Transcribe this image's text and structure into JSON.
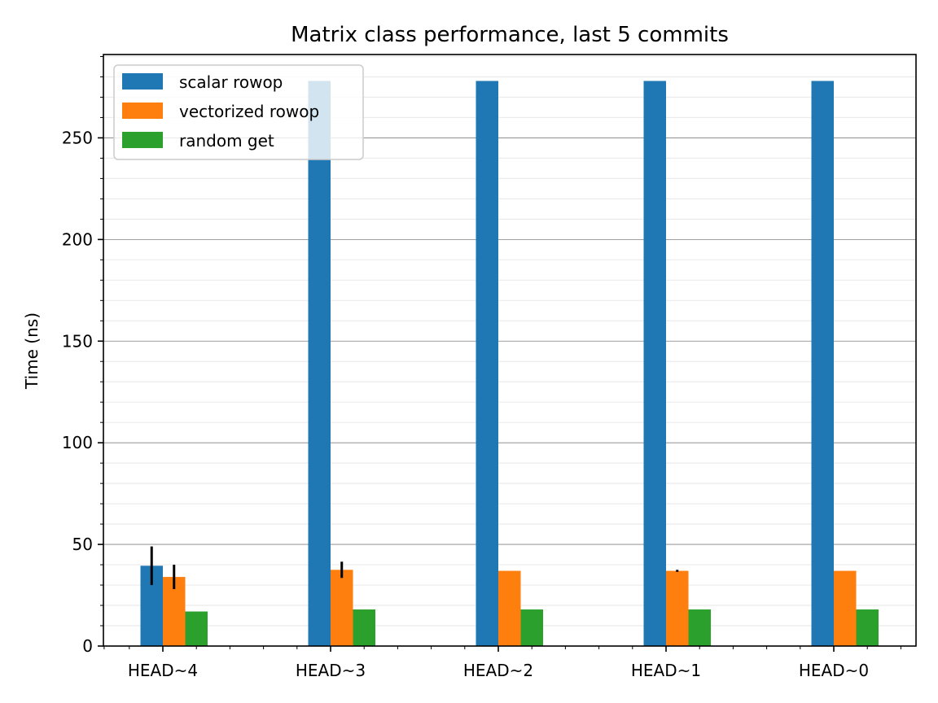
{
  "chart_data": {
    "type": "bar",
    "title": "Matrix class performance, last 5 commits",
    "xlabel": "",
    "ylabel": "Time (ns)",
    "categories": [
      "HEAD~4",
      "HEAD~3",
      "HEAD~2",
      "HEAD~1",
      "HEAD~0"
    ],
    "ylim": [
      0,
      291
    ],
    "yticks": [
      0,
      50,
      100,
      150,
      200,
      250
    ],
    "y_minor_step": 10,
    "grid": true,
    "legend_position": "top-left",
    "series": [
      {
        "name": "scalar rowop",
        "color": "#1f77b4",
        "values": [
          39.5,
          278,
          278,
          278,
          278
        ],
        "errors": [
          9.5,
          0,
          0,
          0,
          0
        ]
      },
      {
        "name": "vectorized rowop",
        "color": "#ff7f0e",
        "values": [
          34,
          37.5,
          37,
          37,
          37
        ],
        "errors": [
          6,
          4,
          0,
          0.5,
          0
        ]
      },
      {
        "name": "random get",
        "color": "#2ca02c",
        "values": [
          17,
          18,
          18,
          18,
          18
        ],
        "errors": [
          0,
          0,
          0,
          0,
          0
        ]
      }
    ]
  }
}
